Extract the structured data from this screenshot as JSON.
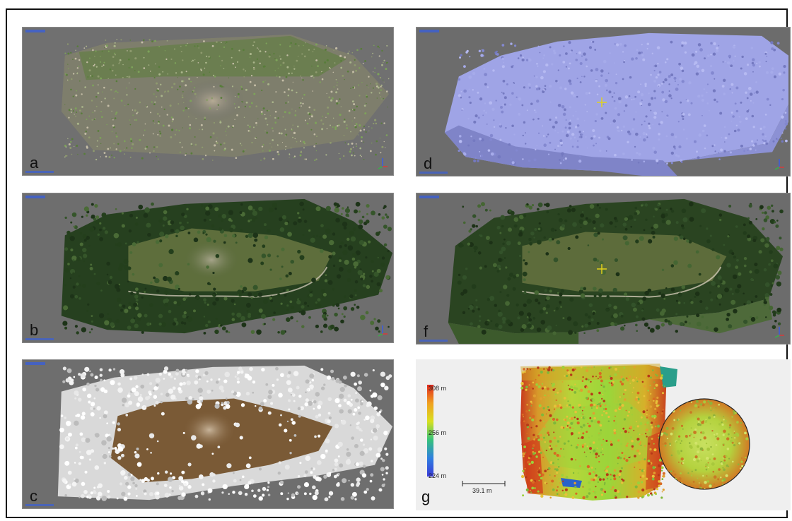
{
  "panels": {
    "a": {
      "label": "a"
    },
    "b": {
      "label": "b"
    },
    "c": {
      "label": "c"
    },
    "d": {
      "label": "d"
    },
    "f": {
      "label": "f"
    },
    "g": {
      "label": "g"
    }
  },
  "legend": {
    "max": "308 m",
    "mid": "256 m",
    "min": "224 m",
    "gradient_colors": [
      "#e0251c",
      "#f0a020",
      "#d8e020",
      "#36c27a",
      "#2f7fe0",
      "#3a3ad8"
    ]
  },
  "scale_bar": {
    "label": "39.1 m"
  },
  "colors": {
    "viewport_bg": "#6b6b6b",
    "vegetation_dark": "#2c4a22",
    "mesh_blue": "#9ea3e8",
    "ground_brown": "#7a5a36",
    "crosshair": "#e2d21a"
  }
}
